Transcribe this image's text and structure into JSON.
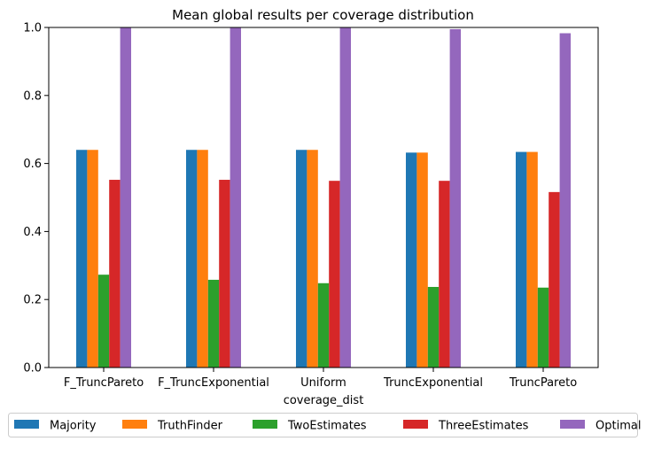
{
  "chart_data": {
    "type": "bar",
    "title": "Mean global results per coverage distribution",
    "xlabel": "coverage_dist",
    "ylabel": "",
    "ylim": [
      0,
      1.0
    ],
    "yticks": [
      "0.0",
      "0.2",
      "0.4",
      "0.6",
      "0.8",
      "1.0"
    ],
    "categories": [
      "F_TruncPareto",
      "F_TruncExponential",
      "Uniform",
      "TruncExponential",
      "TruncPareto"
    ],
    "legend_position": "bottom-center",
    "grid": false,
    "series": [
      {
        "name": "Majority",
        "color": "#1f77b4",
        "values": [
          0.64,
          0.64,
          0.64,
          0.632,
          0.634
        ]
      },
      {
        "name": "TruthFinder",
        "color": "#ff7f0e",
        "values": [
          0.64,
          0.64,
          0.64,
          0.632,
          0.634
        ]
      },
      {
        "name": "TwoEstimates",
        "color": "#2ca02c",
        "values": [
          0.273,
          0.258,
          0.248,
          0.237,
          0.235
        ]
      },
      {
        "name": "ThreeEstimates",
        "color": "#d62728",
        "values": [
          0.552,
          0.552,
          0.549,
          0.549,
          0.516
        ]
      },
      {
        "name": "Optimal",
        "color": "#9467bd",
        "values": [
          1.0,
          1.0,
          1.0,
          0.995,
          0.983
        ]
      }
    ]
  }
}
